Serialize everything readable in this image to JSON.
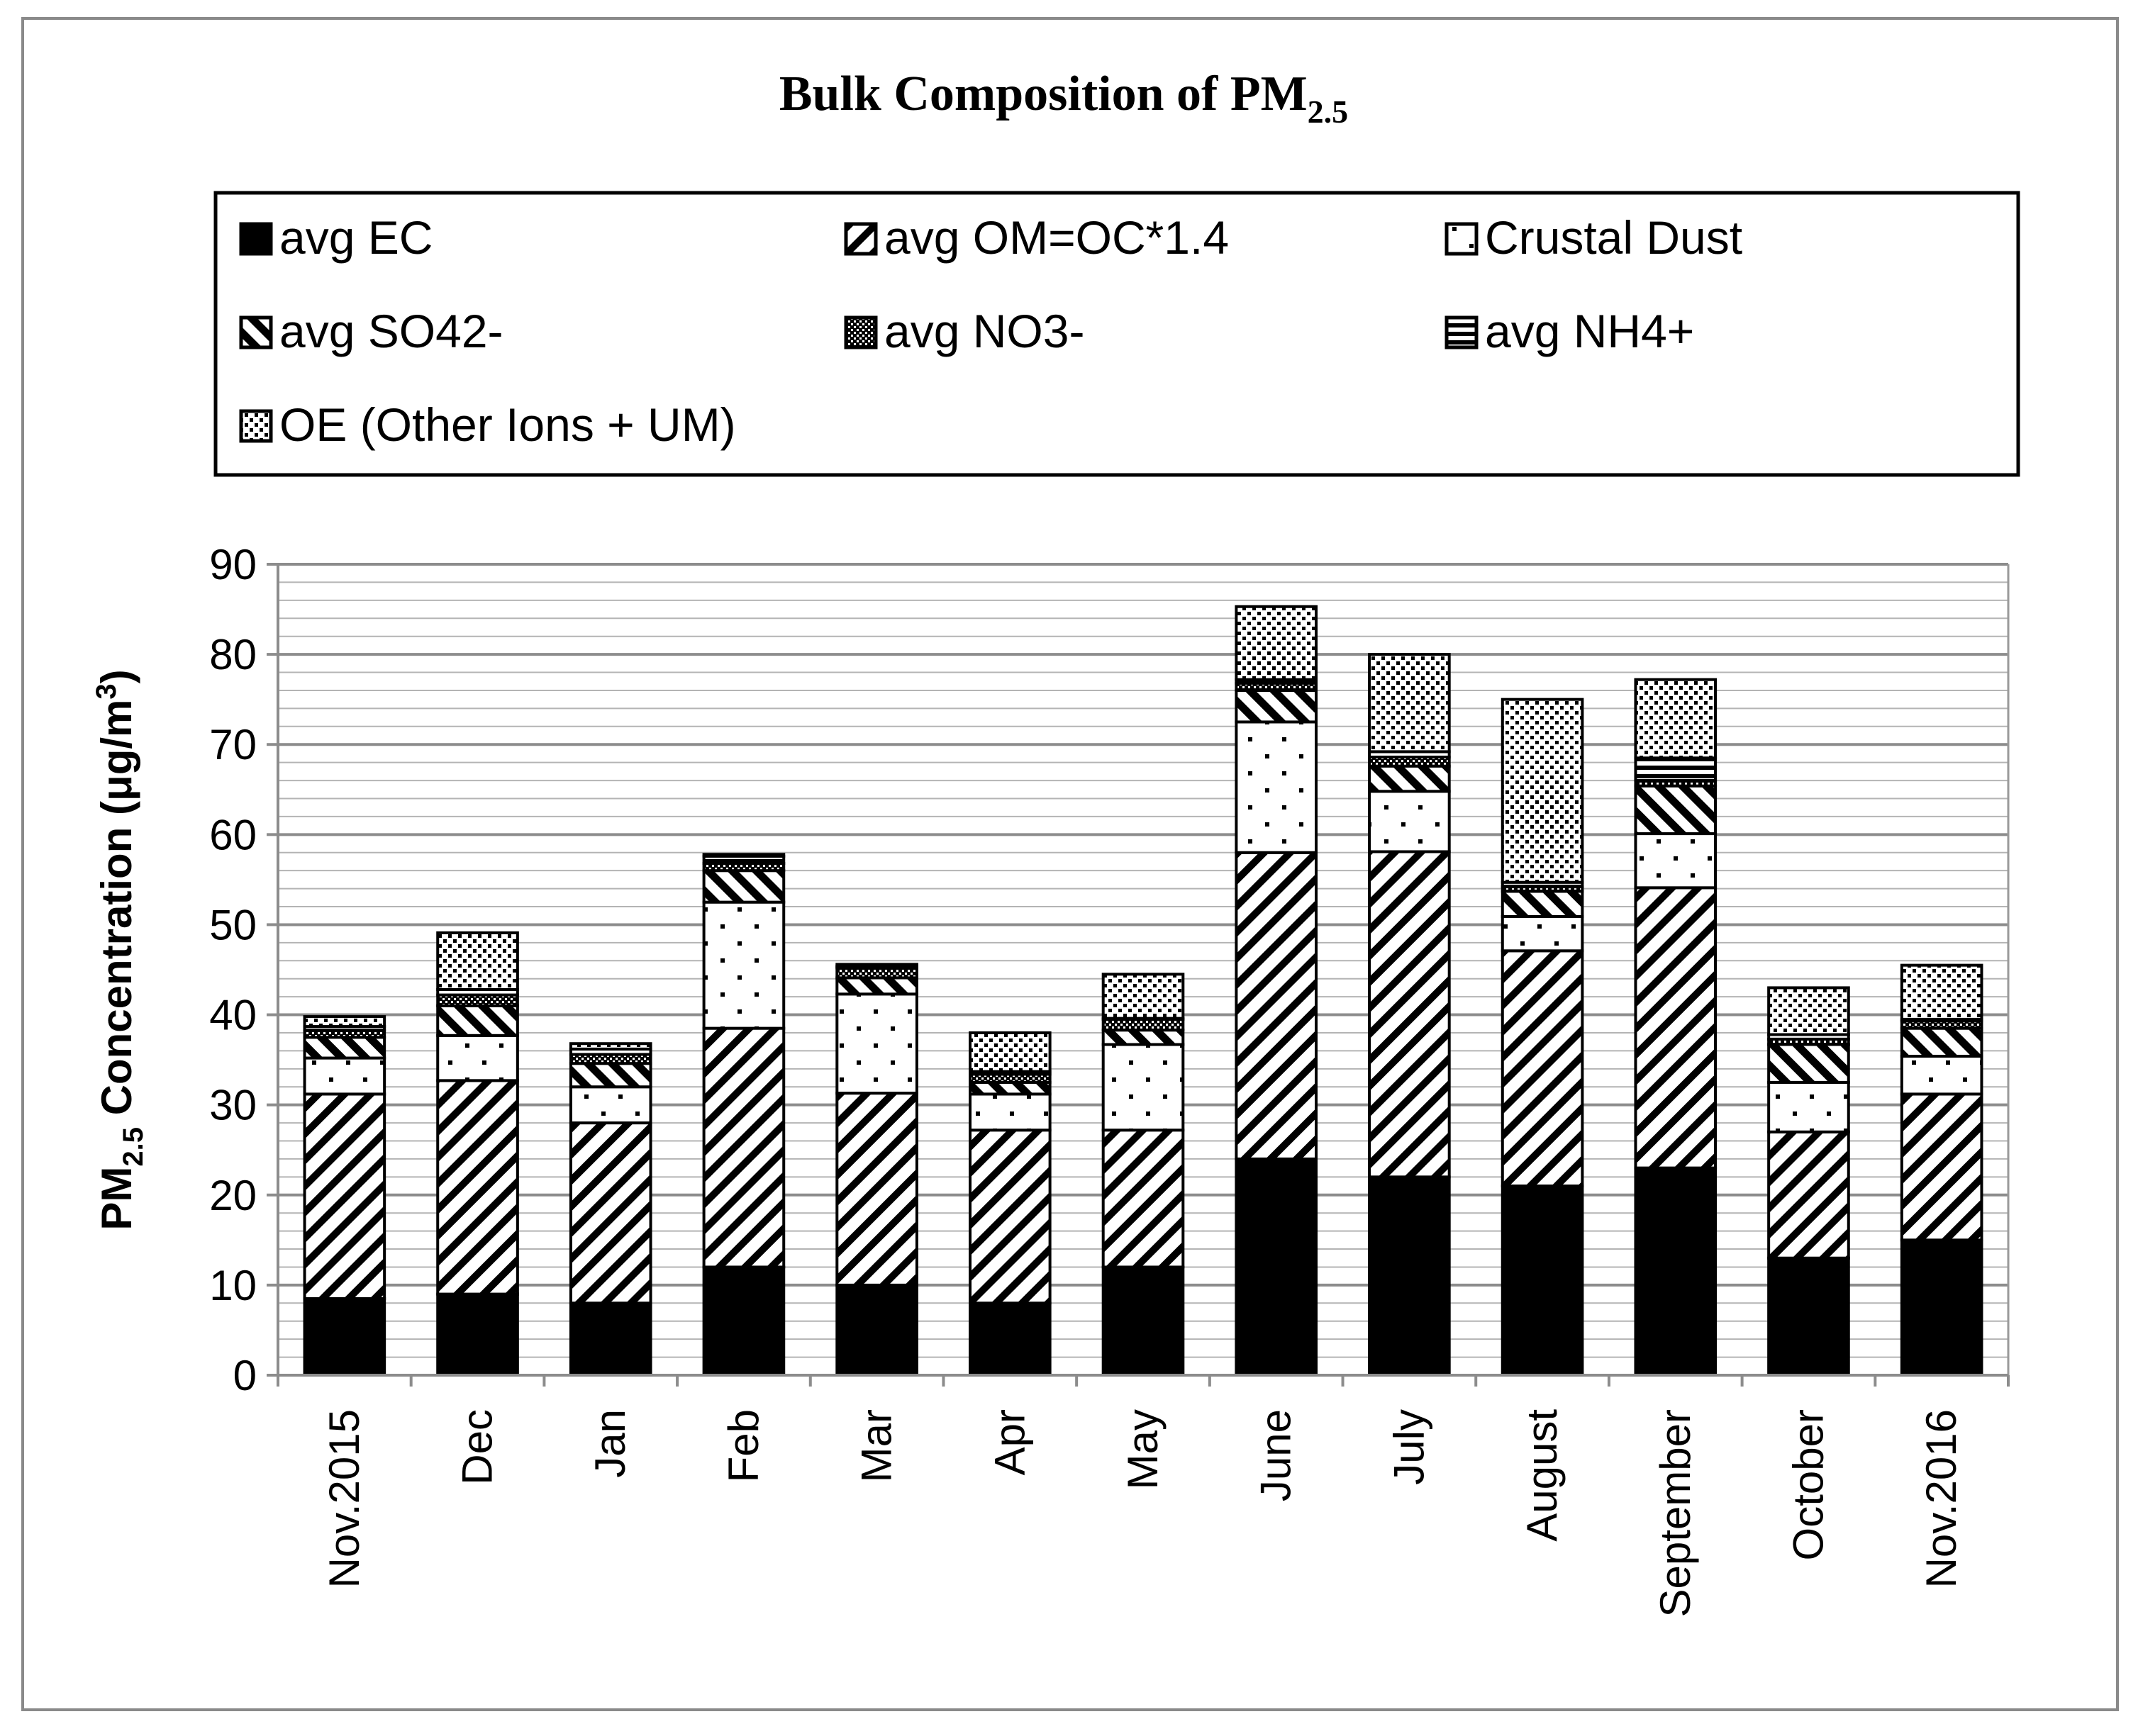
{
  "chart_data": {
    "type": "bar",
    "stacked": true,
    "title": "Bulk Composition of PM",
    "title_subscript": "2.5",
    "ylabel": "Concentration (μg/m",
    "ylabel_prefix": "PM",
    "ylabel_sub": "2.5",
    "ylabel_sup": "3",
    "ylabel_close": ")",
    "xlabel": "",
    "ylim": [
      0,
      90
    ],
    "yticks": [
      0,
      10,
      20,
      30,
      40,
      50,
      60,
      70,
      80,
      90
    ],
    "minor_grid_step": 2,
    "legend_position": "top",
    "categories": [
      "Nov.2015",
      "Dec",
      "Jan",
      "Feb",
      "Mar",
      "Apr",
      "May",
      "June",
      "July",
      "August",
      "September",
      "October",
      "Nov.2016"
    ],
    "series": [
      {
        "name": "avg EC",
        "pattern": "solid",
        "values": [
          8.5,
          9,
          8,
          12,
          10,
          8,
          12,
          24,
          22,
          21,
          23,
          13,
          15
        ]
      },
      {
        "name": "avg OM=OC*1.4",
        "pattern": "diag-wide",
        "values": [
          22.7,
          23.7,
          20,
          26.5,
          21.3,
          19.2,
          15.2,
          34,
          36.1,
          26.1,
          31.1,
          14,
          16.2
        ]
      },
      {
        "name": "Crustal Dust",
        "pattern": "dots",
        "values": [
          4,
          5,
          4,
          14,
          11,
          4,
          9.5,
          14.5,
          6.7,
          3.8,
          6,
          5.5,
          4.2
        ]
      },
      {
        "name": "avg SO42-",
        "pattern": "diag-back",
        "values": [
          2.3,
          3.3,
          2.6,
          3.5,
          1.8,
          1.3,
          1.6,
          3.5,
          2.8,
          2.8,
          5.3,
          4.2,
          3.1
        ]
      },
      {
        "name": "avg NO3-",
        "pattern": "checker",
        "values": [
          0.8,
          1.2,
          1,
          0.8,
          1.1,
          0.9,
          1.2,
          0.8,
          1,
          0.5,
          0.6,
          0.6,
          0.8
        ]
      },
      {
        "name": "avg NH4+",
        "pattern": "hstripes",
        "values": [
          0.4,
          0.6,
          0.6,
          0.8,
          0.2,
          0.3,
          0.1,
          0.4,
          0.6,
          0.5,
          2.5,
          0.5,
          0.2
        ]
      },
      {
        "name": "OE (Other Ions + UM)",
        "pattern": "fine-dots",
        "values": [
          1.1,
          6.3,
          0.6,
          0.2,
          0.2,
          4.3,
          4.9,
          8.1,
          10.8,
          20.3,
          8.7,
          5.2,
          6
        ]
      }
    ]
  }
}
